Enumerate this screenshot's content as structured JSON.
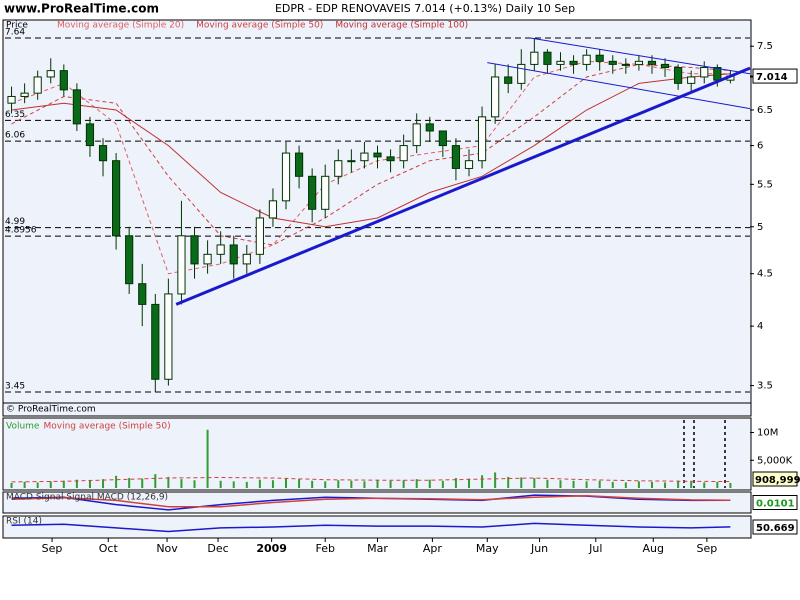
{
  "chart_data": [
    {
      "type": "candlestick",
      "site": "www.ProRealTime.com",
      "title": "EDPR - EDP RENOVAVEIS   7.014 (+0.13%)   Daily  10 Sep",
      "y_label": "Price",
      "watermark": "© ProRealTime.com",
      "x": [
        0,
        1,
        2,
        3,
        4,
        5,
        6,
        7,
        8,
        9,
        10,
        11,
        12,
        13,
        14,
        15,
        16,
        17,
        18,
        19,
        20,
        21,
        22,
        23,
        24,
        25,
        26,
        27,
        28,
        29,
        30,
        31,
        32,
        33,
        34,
        35,
        36,
        37,
        38,
        39,
        40,
        41,
        42,
        43,
        44,
        45,
        46,
        47,
        48,
        49,
        50,
        51,
        52,
        53,
        54,
        55
      ],
      "open": [
        6.6,
        6.7,
        6.75,
        7.0,
        7.1,
        6.8,
        6.3,
        6.0,
        5.8,
        4.9,
        4.4,
        4.2,
        3.55,
        4.3,
        4.9,
        4.6,
        4.7,
        4.8,
        4.6,
        4.7,
        5.1,
        5.3,
        5.9,
        5.6,
        5.2,
        5.6,
        5.8,
        5.8,
        5.9,
        5.85,
        5.8,
        6.0,
        6.3,
        6.2,
        6.0,
        5.7,
        5.8,
        6.4,
        7.0,
        6.9,
        7.2,
        7.4,
        7.2,
        7.25,
        7.2,
        7.35,
        7.25,
        7.2,
        7.2,
        7.25,
        7.2,
        7.15,
        6.9,
        7.0,
        7.15,
        6.95
      ],
      "high": [
        6.85,
        6.9,
        7.1,
        7.3,
        7.2,
        6.9,
        6.4,
        6.1,
        5.9,
        5.0,
        4.6,
        4.3,
        4.45,
        5.3,
        5.0,
        4.85,
        4.95,
        4.9,
        4.8,
        5.2,
        5.45,
        6.05,
        6.0,
        5.7,
        5.75,
        5.95,
        5.95,
        6.05,
        6.0,
        5.95,
        6.15,
        6.45,
        6.4,
        6.2,
        6.1,
        5.95,
        6.55,
        7.2,
        7.2,
        7.45,
        7.64,
        7.45,
        7.4,
        7.35,
        7.45,
        7.45,
        7.35,
        7.3,
        7.35,
        7.35,
        7.3,
        7.2,
        7.1,
        7.25,
        7.2,
        7.1
      ],
      "low": [
        6.45,
        6.6,
        6.65,
        6.9,
        6.7,
        6.2,
        5.85,
        5.6,
        4.75,
        4.3,
        4.0,
        3.45,
        3.5,
        4.2,
        4.45,
        4.5,
        4.6,
        4.45,
        4.5,
        4.6,
        5.0,
        5.2,
        5.45,
        5.05,
        5.1,
        5.5,
        5.65,
        5.7,
        5.7,
        5.65,
        5.7,
        5.9,
        6.05,
        5.85,
        5.55,
        5.6,
        5.7,
        6.3,
        6.75,
        6.8,
        7.1,
        7.05,
        7.1,
        7.05,
        7.1,
        7.1,
        7.05,
        7.05,
        7.1,
        7.05,
        7.0,
        6.8,
        6.75,
        6.9,
        6.85,
        6.9
      ],
      "close": [
        6.7,
        6.75,
        7.0,
        7.1,
        6.8,
        6.3,
        6.0,
        5.8,
        4.9,
        4.4,
        4.2,
        3.55,
        4.3,
        4.9,
        4.6,
        4.7,
        4.8,
        4.6,
        4.7,
        5.1,
        5.3,
        5.9,
        5.6,
        5.2,
        5.6,
        5.8,
        5.8,
        5.9,
        5.85,
        5.8,
        6.0,
        6.3,
        6.2,
        6.0,
        5.7,
        5.8,
        6.4,
        7.0,
        6.9,
        7.2,
        7.4,
        7.2,
        7.25,
        7.2,
        7.35,
        7.25,
        7.2,
        7.2,
        7.25,
        7.2,
        7.15,
        6.9,
        7.0,
        7.15,
        6.95,
        7.014
      ],
      "up_color": "#ffffff",
      "down_color": "#0a6a1a",
      "outline_color": "#003300",
      "xlim": [
        -0.5,
        56.5
      ],
      "xticks": [
        {
          "value": 3.1,
          "label": "Sep"
        },
        {
          "value": 7.4,
          "label": "Oct"
        },
        {
          "value": 11.9,
          "label": "Nov"
        },
        {
          "value": 15.8,
          "label": "Dec"
        },
        {
          "value": 19.9,
          "label": "2009"
        },
        {
          "value": 24.0,
          "label": "Feb"
        },
        {
          "value": 28.0,
          "label": "Mar"
        },
        {
          "value": 32.2,
          "label": "Apr"
        },
        {
          "value": 36.4,
          "label": "May"
        },
        {
          "value": 40.4,
          "label": "Jun"
        },
        {
          "value": 44.7,
          "label": "Jul"
        },
        {
          "value": 49.1,
          "label": "Aug"
        },
        {
          "value": 53.2,
          "label": "Sep"
        }
      ],
      "ylim": [
        3.45,
        7.64
      ],
      "log_scale": true,
      "yticks": [
        3.5,
        4,
        4.5,
        5,
        5.5,
        6,
        6.5,
        7,
        7.5
      ],
      "current": 7.014,
      "levels": [
        7.64,
        6.35,
        6.06,
        4.99,
        4.8956,
        3.45
      ],
      "moving_averages": [
        {
          "name": "Moving average (Simple 20)",
          "color": "#e06060",
          "dashed": true,
          "x": [
            0,
            4,
            8,
            12,
            16,
            20,
            24,
            28,
            32,
            36,
            40,
            44,
            48,
            52,
            55
          ],
          "values": [
            6.6,
            6.9,
            6.3,
            4.5,
            4.6,
            4.8,
            5.5,
            5.8,
            5.9,
            6.0,
            7.0,
            7.25,
            7.2,
            7.05,
            7.05
          ]
        },
        {
          "name": "Moving average (Simple 50)",
          "color": "#d04040",
          "dashed": true,
          "x": [
            0,
            4,
            8,
            12,
            16,
            20,
            24,
            28,
            32,
            36,
            40,
            44,
            48,
            52,
            55
          ],
          "values": [
            6.3,
            6.7,
            6.6,
            5.6,
            4.9,
            4.8,
            5.1,
            5.5,
            5.8,
            5.9,
            6.4,
            7.0,
            7.2,
            7.15,
            7.1
          ]
        },
        {
          "name": "Moving average (Simple 100)",
          "color": "#c03030",
          "dashed": false,
          "x": [
            0,
            4,
            8,
            12,
            16,
            20,
            24,
            28,
            32,
            36,
            40,
            44,
            48,
            52,
            55
          ],
          "values": [
            6.5,
            6.6,
            6.5,
            6.0,
            5.4,
            5.1,
            5.0,
            5.1,
            5.4,
            5.6,
            6.0,
            6.5,
            6.9,
            7.0,
            7.05
          ]
        }
      ],
      "trendline_color": "#1a1acc",
      "trendlines": [
        {
          "x": [
            12.6,
            56.5
          ],
          "values": [
            4.2,
            7.14
          ],
          "width": 3
        },
        {
          "x": [
            39.7,
            56.5
          ],
          "values": [
            7.64,
            7.05
          ],
          "width": 1
        },
        {
          "x": [
            36.4,
            56.5
          ],
          "values": [
            7.23,
            6.52
          ],
          "width": 1
        }
      ]
    },
    {
      "type": "bar",
      "title": "Volume",
      "ma_name": "Moving average (Simple 50)",
      "color": "#2e9e2e",
      "ma_color": "#d04040",
      "x": [
        0,
        1,
        2,
        3,
        4,
        5,
        6,
        7,
        8,
        9,
        10,
        11,
        12,
        13,
        14,
        15,
        16,
        17,
        18,
        19,
        20,
        21,
        22,
        23,
        24,
        25,
        26,
        27,
        28,
        29,
        30,
        31,
        32,
        33,
        34,
        35,
        36,
        37,
        38,
        39,
        40,
        41,
        42,
        43,
        44,
        45,
        46,
        47,
        48,
        49,
        50,
        51,
        52,
        53,
        54,
        55
      ],
      "values": [
        900000,
        1100000,
        1000000,
        1200000,
        1300000,
        1500000,
        1400000,
        1600000,
        2200000,
        1800000,
        1700000,
        2500000,
        2000000,
        1600000,
        1400000,
        10500000,
        1300000,
        1200000,
        1100000,
        1500000,
        1400000,
        1700000,
        1600000,
        1300000,
        1200000,
        1400000,
        1300000,
        1200000,
        1500000,
        1300000,
        1400000,
        1600000,
        1500000,
        1300000,
        1800000,
        1700000,
        2300000,
        2800000,
        2000000,
        1900000,
        1800000,
        1500000,
        1400000,
        1300000,
        1200000,
        1300000,
        1100000,
        1000000,
        1200000,
        1100000,
        1000000,
        1300000,
        1200000,
        1000000,
        1100000,
        908999
      ],
      "ma_x": [
        0,
        4,
        8,
        12,
        16,
        20,
        24,
        28,
        32,
        36,
        40,
        44,
        48,
        52,
        55
      ],
      "ma_values": [
        1100000,
        1200000,
        1500000,
        1800000,
        1900000,
        1800000,
        1500000,
        1400000,
        1400000,
        1600000,
        1800000,
        1500000,
        1300000,
        1200000,
        1150000
      ],
      "ylim": [
        0,
        11900000
      ],
      "yticks": [
        {
          "value": 10000000,
          "label": "10M"
        },
        {
          "value": 5000000,
          "label": "5,000K"
        }
      ],
      "current": {
        "value": 908999,
        "label": "908,999"
      }
    },
    {
      "type": "line",
      "title": "MACD Signal Signal MACD (12,26,9)",
      "x": [
        0,
        4,
        8,
        12,
        16,
        20,
        24,
        28,
        32,
        36,
        40,
        44,
        48,
        52,
        55
      ],
      "series": [
        {
          "name": "MACD",
          "color": "#1a1acc",
          "values": [
            0.1,
            0.15,
            -0.2,
            -0.45,
            -0.2,
            0.0,
            0.15,
            0.1,
            0.05,
            0.0,
            0.25,
            0.2,
            0.05,
            0.0,
            0.0101
          ]
        },
        {
          "name": "Signal",
          "color": "#d04040",
          "values": [
            0.05,
            0.12,
            0.0,
            -0.3,
            -0.3,
            -0.1,
            0.05,
            0.1,
            0.08,
            0.03,
            0.15,
            0.22,
            0.1,
            0.02,
            0.01
          ]
        }
      ],
      "ylim": [
        -0.5,
        0.3
      ],
      "current": 0.0101,
      "current_color": "#1a9a1a"
    },
    {
      "type": "line",
      "title": "RSI (14)",
      "x": [
        0,
        4,
        8,
        12,
        16,
        20,
        24,
        28,
        32,
        36,
        40,
        44,
        48,
        52,
        55
      ],
      "series": [
        {
          "name": "RSI",
          "color": "#1a1acc",
          "values": [
            60,
            65,
            45,
            25,
            45,
            50,
            60,
            55,
            55,
            50,
            70,
            60,
            50,
            45,
            50.669
          ]
        }
      ],
      "ylim": [
        0,
        100
      ],
      "current": 50.669,
      "current_color": "#000000"
    }
  ]
}
